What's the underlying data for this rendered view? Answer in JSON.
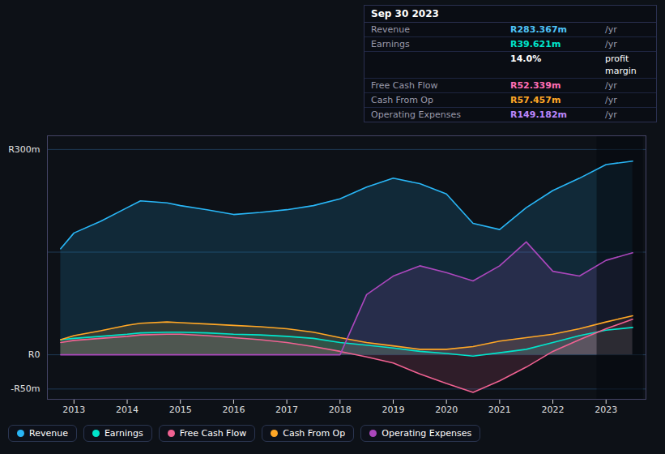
{
  "chart_data": {
    "type": "area",
    "x": [
      2012.75,
      2013,
      2013.5,
      2014,
      2014.25,
      2014.75,
      2015,
      2015.5,
      2016,
      2016.5,
      2017,
      2017.5,
      2018,
      2018.5,
      2019,
      2019.5,
      2020,
      2020.5,
      2021,
      2021.5,
      2022,
      2022.5,
      2023,
      2023.5
    ],
    "series": [
      {
        "name": "Revenue",
        "color": "#29b6f6",
        "values": [
          155,
          178,
          195,
          215,
          225,
          222,
          218,
          212,
          205,
          208,
          212,
          218,
          228,
          245,
          258,
          250,
          235,
          192,
          183,
          215,
          240,
          258,
          278,
          283
        ]
      },
      {
        "name": "Earnings",
        "color": "#00e5cc",
        "values": [
          22,
          24,
          27,
          30,
          32,
          33,
          33,
          32,
          30,
          29,
          27,
          24,
          18,
          14,
          10,
          5,
          2,
          -2,
          3,
          8,
          18,
          28,
          36,
          40
        ]
      },
      {
        "name": "Free Cash Flow",
        "color": "#f06292",
        "values": [
          18,
          21,
          24,
          27,
          29,
          30,
          30,
          28,
          25,
          22,
          18,
          12,
          5,
          -3,
          -12,
          -28,
          -42,
          -55,
          -38,
          -18,
          5,
          22,
          38,
          52
        ]
      },
      {
        "name": "Cash From Op",
        "color": "#ffa726",
        "values": [
          22,
          28,
          35,
          43,
          46,
          48,
          47,
          45,
          43,
          41,
          38,
          33,
          25,
          18,
          13,
          8,
          8,
          12,
          20,
          25,
          30,
          38,
          48,
          57
        ]
      },
      {
        "name": "Operating Expenses",
        "color": "#ab47bc",
        "values": [
          0,
          0,
          0,
          0,
          0,
          0,
          0,
          0,
          0,
          0,
          0,
          0,
          0,
          88,
          115,
          130,
          120,
          108,
          130,
          165,
          122,
          115,
          138,
          149
        ]
      }
    ],
    "xlim": [
      2012.5,
      2023.75
    ],
    "xticks": [
      2013,
      2014,
      2015,
      2016,
      2017,
      2018,
      2019,
      2020,
      2021,
      2022,
      2023
    ],
    "ylim": [
      -65,
      320
    ],
    "yticks": [
      {
        "value": -50,
        "label": "-R50m"
      },
      {
        "value": 0,
        "label": "R0"
      },
      {
        "value": 300,
        "label": "R300m"
      }
    ],
    "grid": true,
    "reference_lines": [
      150
    ],
    "shaded_region": [
      2022.83,
      2023.7
    ],
    "legend": "bottom",
    "info_box": {
      "title": "Sep 30 2023",
      "rows": [
        {
          "label": "Revenue",
          "value": "R283.367m",
          "suffix": "/yr",
          "color": "#4fc3f7"
        },
        {
          "label": "Earnings",
          "value": "R39.621m",
          "suffix": "/yr",
          "color": "#00e5cc"
        },
        {
          "value": "14.0%",
          "suffix": "profit margin",
          "color": "#ffffff"
        },
        {
          "label": "Free Cash Flow",
          "value": "R52.339m",
          "suffix": "/yr",
          "color": "#ff6eb4"
        },
        {
          "label": "Cash From Op",
          "value": "R57.457m",
          "suffix": "/yr",
          "color": "#ffa726"
        },
        {
          "label": "Operating Expenses",
          "value": "R149.182m",
          "suffix": "/yr",
          "color": "#bb86fc"
        }
      ]
    }
  }
}
